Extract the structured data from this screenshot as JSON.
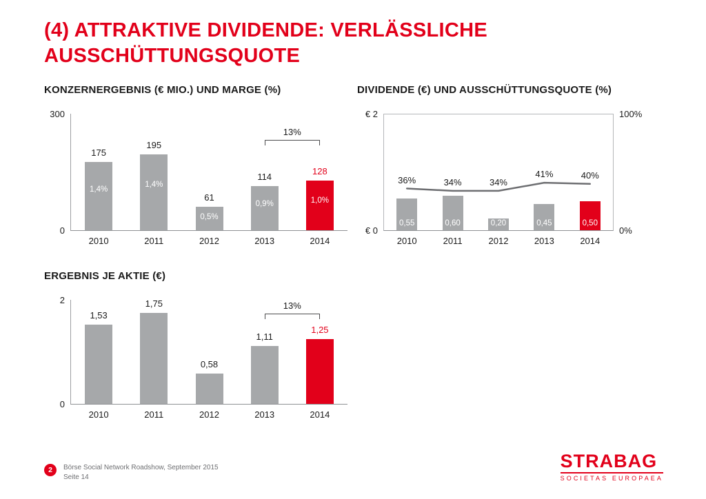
{
  "title": {
    "line1": "(4) ATTRAKTIVE DIVIDENDE: VERLÄSSLICHE",
    "line2": "AUSSCHÜTTUNGSQUOTE"
  },
  "colors": {
    "accent_red": "#e2001a",
    "bar_gray": "#a6a8aa",
    "trend_line_gray": "#6d6e71"
  },
  "chart_data": [
    {
      "type": "bar",
      "title": "KONZERNERGEBNIS (€ MIO.) UND MARGE (%)",
      "categories": [
        "2010",
        "2011",
        "2012",
        "2013",
        "2014"
      ],
      "values": [
        175,
        195,
        61,
        114,
        128
      ],
      "bar_labels": [
        "175",
        "195",
        "61",
        "114",
        "128"
      ],
      "inner_labels": [
        "1,4%",
        "1,4%",
        "0,5%",
        "0,9%",
        "1,0%"
      ],
      "ylim": [
        0,
        300
      ],
      "yticks": [
        "300",
        "0"
      ],
      "highlight_index": 4,
      "annotation": {
        "label": "13%",
        "from_index": 3,
        "to_index": 4
      }
    },
    {
      "type": "bar+line",
      "title": "DIVIDENDE (€) UND AUSSCHÜTTUNGSQUOTE (%)",
      "categories": [
        "2010",
        "2011",
        "2012",
        "2013",
        "2014"
      ],
      "series": [
        {
          "name": "Dividende",
          "type": "bar",
          "axis": "left",
          "values": [
            0.55,
            0.6,
            0.2,
            0.45,
            0.5
          ],
          "labels": [
            "0,55",
            "0,60",
            "0,20",
            "0,45",
            "0,50"
          ]
        },
        {
          "name": "Ausschüttungsquote",
          "type": "line",
          "axis": "right",
          "values": [
            36,
            34,
            34,
            41,
            40
          ],
          "labels": [
            "36%",
            "34%",
            "34%",
            "41%",
            "40%"
          ]
        }
      ],
      "ylim_left": [
        0,
        2
      ],
      "ylim_right": [
        0,
        100
      ],
      "yticks_left": [
        "€ 2",
        "€ 0"
      ],
      "yticks_right": [
        "100%",
        "0%"
      ],
      "highlight_index": 4
    },
    {
      "type": "bar",
      "title": "ERGEBNIS JE AKTIE (€)",
      "categories": [
        "2010",
        "2011",
        "2012",
        "2013",
        "2014"
      ],
      "values": [
        1.53,
        1.75,
        0.58,
        1.11,
        1.25
      ],
      "bar_labels": [
        "1,53",
        "1,75",
        "0,58",
        "1,11",
        "1,25"
      ],
      "ylim": [
        0,
        2
      ],
      "yticks": [
        "2",
        "0"
      ],
      "highlight_index": 4,
      "annotation": {
        "label": "13%",
        "from_index": 3,
        "to_index": 4
      }
    }
  ],
  "footer": {
    "page_badge": "2",
    "line1": "Börse Social Network Roadshow, September 2015",
    "line2": "Seite 14"
  },
  "logo": {
    "name": "STRABAG",
    "subtitle": "SOCIETAS EUROPAEA"
  }
}
